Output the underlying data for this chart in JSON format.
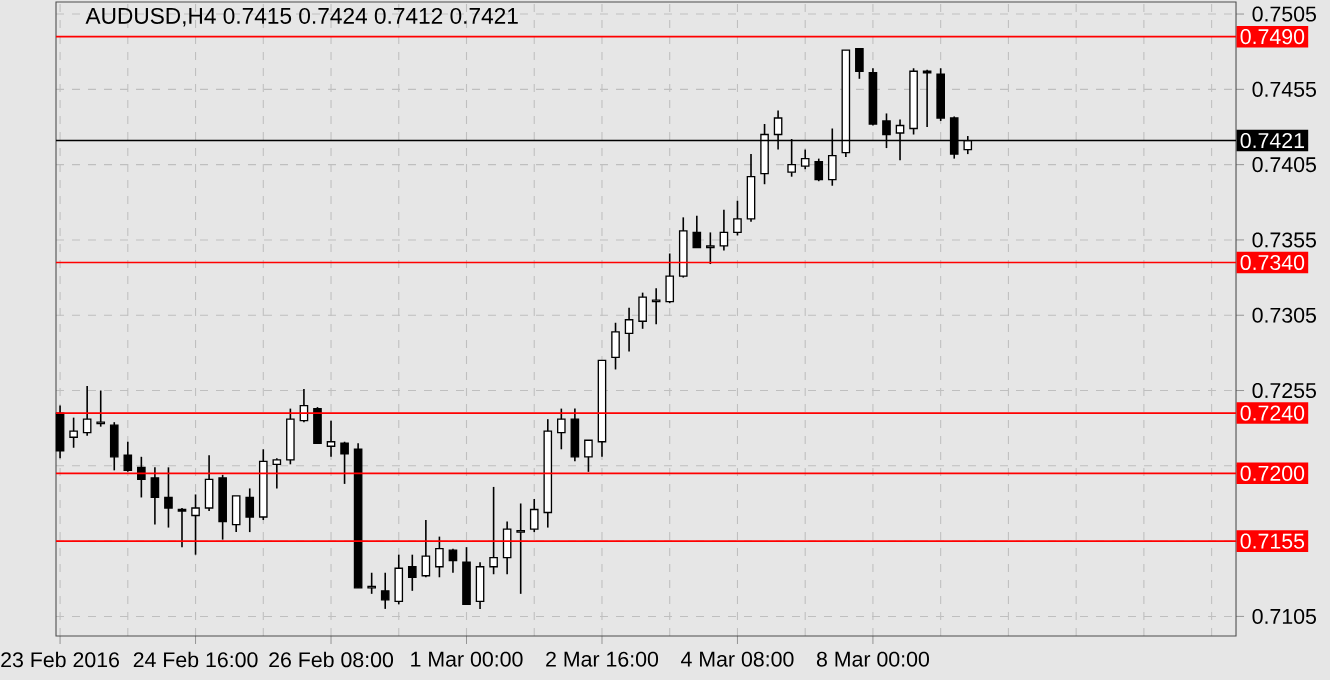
{
  "chart_data": {
    "type": "candlestick",
    "title": "AUDUSD,H4  0.7415 0.7424 0.7412 0.7421",
    "categories": [
      "23 Feb 2016",
      null,
      null,
      null,
      null,
      null,
      null,
      null,
      null,
      null,
      "24 Feb 16:00",
      null,
      null,
      null,
      null,
      null,
      null,
      null,
      null,
      null,
      "26 Feb 08:00",
      null,
      null,
      null,
      null,
      null,
      null,
      null,
      null,
      null,
      "1 Mar 00:00",
      null,
      null,
      null,
      null,
      null,
      null,
      null,
      null,
      null,
      "2 Mar 16:00",
      null,
      null,
      null,
      null,
      null,
      null,
      null,
      null,
      null,
      "4 Mar 08:00",
      null,
      null,
      null,
      null,
      null,
      null,
      null,
      null,
      null,
      "8 Mar 00:00",
      null,
      null,
      null,
      null,
      null,
      null,
      null,
      null,
      null,
      null,
      null,
      null,
      null,
      null,
      null,
      null,
      null,
      null,
      null,
      null,
      null,
      null,
      null,
      null,
      null,
      null
    ],
    "ohlc": [
      [
        0.724,
        0.7245,
        0.721,
        0.7215
      ],
      [
        0.7224,
        0.7237,
        0.7217,
        0.7228
      ],
      [
        0.7227,
        0.7258,
        0.7225,
        0.7236
      ],
      [
        0.7233,
        0.7255,
        0.7231,
        0.7234
      ],
      [
        0.7232,
        0.7234,
        0.7202,
        0.7211
      ],
      [
        0.7212,
        0.7221,
        0.7201,
        0.7202
      ],
      [
        0.7204,
        0.7211,
        0.7184,
        0.7196
      ],
      [
        0.7197,
        0.7204,
        0.7166,
        0.7184
      ],
      [
        0.7184,
        0.7204,
        0.7164,
        0.7177
      ],
      [
        0.7176,
        0.7177,
        0.7151,
        0.7175
      ],
      [
        0.7172,
        0.7186,
        0.7146,
        0.7177
      ],
      [
        0.7177,
        0.7212,
        0.7175,
        0.7196
      ],
      [
        0.7197,
        0.7199,
        0.7156,
        0.7168
      ],
      [
        0.7166,
        0.7185,
        0.7161,
        0.7185
      ],
      [
        0.7184,
        0.719,
        0.7161,
        0.7171
      ],
      [
        0.7171,
        0.7216,
        0.7169,
        0.7208
      ],
      [
        0.7206,
        0.721,
        0.719,
        0.7209
      ],
      [
        0.7209,
        0.7243,
        0.7206,
        0.7236
      ],
      [
        0.7235,
        0.7256,
        0.7234,
        0.7245
      ],
      [
        0.7243,
        0.7244,
        0.722,
        0.722
      ],
      [
        0.7218,
        0.7235,
        0.7211,
        0.7221
      ],
      [
        0.722,
        0.7221,
        0.7193,
        0.7213
      ],
      [
        0.7216,
        0.722,
        0.7124,
        0.7124
      ],
      [
        0.7124,
        0.7134,
        0.712,
        0.7125
      ],
      [
        0.7122,
        0.7134,
        0.711,
        0.7116
      ],
      [
        0.7115,
        0.7146,
        0.7113,
        0.7137
      ],
      [
        0.7138,
        0.7146,
        0.7122,
        0.7131
      ],
      [
        0.7132,
        0.7169,
        0.7131,
        0.7145
      ],
      [
        0.7138,
        0.7158,
        0.7131,
        0.715
      ],
      [
        0.7149,
        0.715,
        0.7134,
        0.7142
      ],
      [
        0.7141,
        0.7151,
        0.7113,
        0.7113
      ],
      [
        0.7115,
        0.7141,
        0.711,
        0.7138
      ],
      [
        0.7138,
        0.7191,
        0.7133,
        0.7144
      ],
      [
        0.7144,
        0.7168,
        0.7133,
        0.7163
      ],
      [
        0.7161,
        0.718,
        0.712,
        0.7162
      ],
      [
        0.7163,
        0.7183,
        0.7161,
        0.7176
      ],
      [
        0.7174,
        0.7236,
        0.7164,
        0.7228
      ],
      [
        0.7227,
        0.7243,
        0.7216,
        0.7236
      ],
      [
        0.7236,
        0.7243,
        0.7208,
        0.7211
      ],
      [
        0.7211,
        0.7222,
        0.7201,
        0.7222
      ],
      [
        0.7221,
        0.7275,
        0.7211,
        0.7275
      ],
      [
        0.7277,
        0.73,
        0.7269,
        0.7294
      ],
      [
        0.7293,
        0.731,
        0.7281,
        0.7302
      ],
      [
        0.7301,
        0.732,
        0.7296,
        0.7317
      ],
      [
        0.7314,
        0.7323,
        0.7299,
        0.7315
      ],
      [
        0.7314,
        0.7346,
        0.7313,
        0.7331
      ],
      [
        0.7331,
        0.737,
        0.733,
        0.7361
      ],
      [
        0.736,
        0.7371,
        0.735,
        0.735
      ],
      [
        0.735,
        0.736,
        0.7339,
        0.7351
      ],
      [
        0.7351,
        0.7375,
        0.7348,
        0.736
      ],
      [
        0.736,
        0.7381,
        0.7358,
        0.7369
      ],
      [
        0.7369,
        0.7412,
        0.7367,
        0.7397
      ],
      [
        0.7399,
        0.7432,
        0.7392,
        0.7425
      ],
      [
        0.7425,
        0.7441,
        0.7415,
        0.7436
      ],
      [
        0.74,
        0.7422,
        0.7397,
        0.7405
      ],
      [
        0.7404,
        0.7415,
        0.7402,
        0.7409
      ],
      [
        0.7407,
        0.7409,
        0.7394,
        0.7395
      ],
      [
        0.7395,
        0.7429,
        0.7391,
        0.7411
      ],
      [
        0.7413,
        0.7481,
        0.741,
        0.7481
      ],
      [
        0.7482,
        0.7482,
        0.7462,
        0.7467
      ],
      [
        0.7466,
        0.7469,
        0.7431,
        0.7432
      ],
      [
        0.7434,
        0.7439,
        0.7416,
        0.7425
      ],
      [
        0.7426,
        0.7435,
        0.7408,
        0.7431
      ],
      [
        0.7429,
        0.7469,
        0.7425,
        0.7467
      ],
      [
        0.7467,
        0.7468,
        0.743,
        0.7466
      ],
      [
        0.7465,
        0.7469,
        0.7434,
        0.7436
      ],
      [
        0.7436,
        0.7437,
        0.7409,
        0.7412
      ],
      [
        0.7415,
        0.7424,
        0.7412,
        0.7421
      ],
      null,
      null,
      null,
      null,
      null,
      null,
      null,
      null,
      null,
      null,
      null,
      null,
      null,
      null,
      null,
      null,
      null,
      null,
      null
    ],
    "ylim": [
      0.7092,
      0.7513
    ],
    "yticks": [
      0.7105,
      {
        "value": 0.7155,
        "label": null
      },
      {
        "value": 0.7205,
        "label": null
      },
      0.7255,
      0.7305,
      0.7355,
      0.7405,
      0.7455,
      0.7505
    ],
    "ref_lines": [
      {
        "axis": "y",
        "value": 0.749,
        "label": "0.7490",
        "color": "#ff0000"
      },
      {
        "axis": "y",
        "value": 0.734,
        "label": "0.7340",
        "color": "#ff0000"
      },
      {
        "axis": "y",
        "value": 0.724,
        "label": "0.7240",
        "color": "#ff0000"
      },
      {
        "axis": "y",
        "value": 0.72,
        "label": "0.7200",
        "color": "#ff0000"
      },
      {
        "axis": "y",
        "value": 0.7155,
        "label": "0.7155",
        "color": "#ff0000"
      },
      {
        "axis": "y",
        "value": 0.7421,
        "label": "0.7421",
        "color": "#000000"
      }
    ],
    "grid": true
  }
}
